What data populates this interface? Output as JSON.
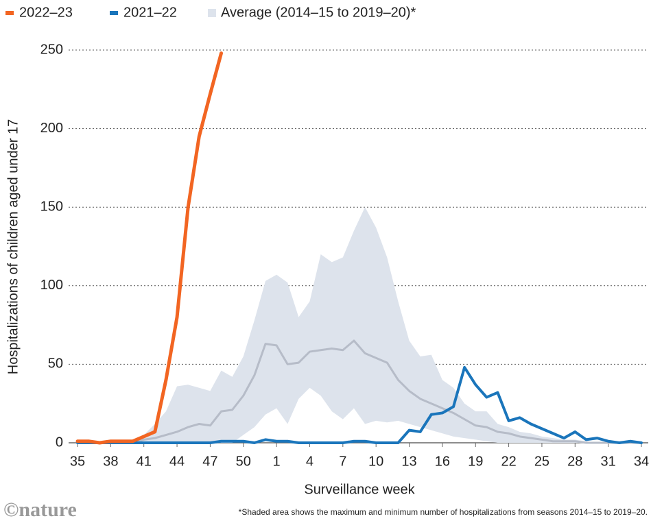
{
  "chart_data": {
    "type": "line",
    "y_label": "Hospitalizations of children aged under 17",
    "x_label": "Surveillance week",
    "footnote": "*Shaded area shows the maximum and minimum number of hospitalizations from seasons 2014–15 to 2019–20.",
    "source": "©nature",
    "categories": [
      "35",
      null,
      null,
      "38",
      null,
      null,
      "41",
      null,
      null,
      "44",
      null,
      null,
      "47",
      null,
      null,
      "50",
      null,
      null,
      "1",
      null,
      null,
      "4",
      null,
      null,
      "7",
      null,
      null,
      "10",
      null,
      null,
      "13",
      null,
      null,
      "16",
      null,
      null,
      "19",
      null,
      null,
      "22",
      null,
      null,
      "25",
      null,
      null,
      "28",
      null,
      null,
      "31",
      null,
      null,
      "34"
    ],
    "series": [
      {
        "name": "2022–23",
        "color": "#f26522",
        "values": [
          1,
          1,
          0,
          1,
          1,
          1,
          4,
          7,
          40,
          80,
          150,
          195,
          222,
          248,
          null,
          null,
          null,
          null,
          null,
          null,
          null,
          null,
          null,
          null,
          null,
          null,
          null,
          null,
          null,
          null,
          null,
          null,
          null,
          null,
          null,
          null,
          null,
          null,
          null,
          null,
          null,
          null,
          null,
          null,
          null,
          null,
          null,
          null,
          null,
          null,
          null,
          null
        ]
      },
      {
        "name": "2021–22",
        "color": "#1a75bb",
        "values": [
          0,
          0,
          0,
          0,
          0,
          0,
          0,
          0,
          0,
          0,
          0,
          0,
          0,
          1,
          1,
          1,
          0,
          2,
          1,
          1,
          0,
          0,
          0,
          0,
          0,
          1,
          1,
          0,
          0,
          0,
          8,
          7,
          18,
          19,
          23,
          48,
          37,
          29,
          32,
          14,
          16,
          12,
          9,
          6,
          3,
          7,
          2,
          3,
          1,
          0,
          1,
          0
        ]
      }
    ],
    "average": {
      "name": "Average (2014–15 to 2019–20)*",
      "color": "#b6bcc8",
      "range_color": "#dde3ec",
      "values": [
        0,
        0,
        0,
        0,
        0,
        0,
        2,
        3,
        5,
        7,
        10,
        12,
        11,
        20,
        21,
        30,
        43,
        63,
        62,
        50,
        51,
        58,
        59,
        60,
        59,
        65,
        57,
        54,
        51,
        40,
        33,
        28,
        25,
        22,
        19,
        15,
        11,
        10,
        7,
        6,
        4,
        3,
        2,
        1,
        1,
        1,
        0,
        0,
        0,
        0,
        0,
        0
      ],
      "max": [
        0,
        0,
        0,
        0,
        0,
        1,
        5,
        12,
        20,
        36,
        37,
        35,
        33,
        46,
        42,
        55,
        78,
        103,
        107,
        102,
        80,
        90,
        120,
        115,
        118,
        135,
        150,
        137,
        118,
        90,
        65,
        55,
        56,
        40,
        35,
        25,
        20,
        20,
        12,
        10,
        7,
        6,
        4,
        3,
        2,
        2,
        1,
        0,
        0,
        0,
        0,
        0
      ],
      "min": [
        0,
        0,
        0,
        0,
        0,
        0,
        0,
        0,
        0,
        0,
        0,
        0,
        0,
        0,
        0,
        5,
        10,
        18,
        22,
        12,
        28,
        35,
        30,
        20,
        15,
        22,
        12,
        14,
        13,
        14,
        12,
        10,
        8,
        6,
        4,
        3,
        2,
        1,
        0,
        0,
        0,
        0,
        0,
        0,
        0,
        0,
        0,
        0,
        0,
        0,
        0,
        0
      ]
    },
    "ylim": [
      0,
      250
    ],
    "yticks": [
      0,
      50,
      100,
      150,
      200,
      250
    ],
    "grid": true
  }
}
